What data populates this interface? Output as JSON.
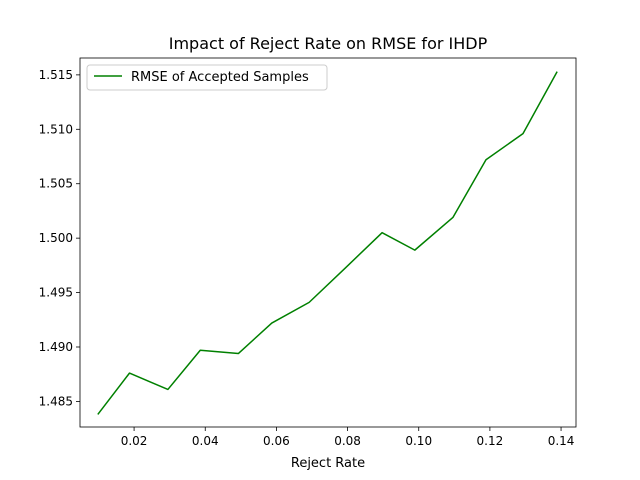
{
  "chart_data": {
    "type": "line",
    "title": "Impact of Reject Rate on RMSE for IHDP",
    "xlabel": "Reject Rate",
    "ylabel": "",
    "xlim": [
      0.0048,
      0.1442
    ],
    "ylim": [
      1.48265,
      1.51655
    ],
    "x_ticks": [
      {
        "value": 0.02,
        "label": "0.02"
      },
      {
        "value": 0.04,
        "label": "0.04"
      },
      {
        "value": 0.06,
        "label": "0.06"
      },
      {
        "value": 0.08,
        "label": "0.08"
      },
      {
        "value": 0.1,
        "label": "0.10"
      },
      {
        "value": 0.12,
        "label": "0.12"
      },
      {
        "value": 0.14,
        "label": "0.14"
      }
    ],
    "y_ticks": [
      {
        "value": 1.485,
        "label": "1.485"
      },
      {
        "value": 1.49,
        "label": "1.490"
      },
      {
        "value": 1.495,
        "label": "1.495"
      },
      {
        "value": 1.5,
        "label": "1.500"
      },
      {
        "value": 1.505,
        "label": "1.505"
      },
      {
        "value": 1.51,
        "label": "1.510"
      },
      {
        "value": 1.515,
        "label": "1.515"
      }
    ],
    "grid": false,
    "legend_position": "top-left",
    "series": [
      {
        "name": "RMSE of Accepted Samples",
        "color": "#008000",
        "x": [
          0.0098,
          0.0187,
          0.0295,
          0.0386,
          0.0493,
          0.0587,
          0.0692,
          0.0795,
          0.0897,
          0.0989,
          0.1096,
          0.1189,
          0.1293,
          0.1389
        ],
        "y": [
          1.4838,
          1.4876,
          1.4861,
          1.4897,
          1.4894,
          1.4922,
          1.4941,
          1.4973,
          1.5005,
          1.4989,
          1.5019,
          1.5072,
          1.5096,
          1.5153
        ]
      }
    ]
  }
}
